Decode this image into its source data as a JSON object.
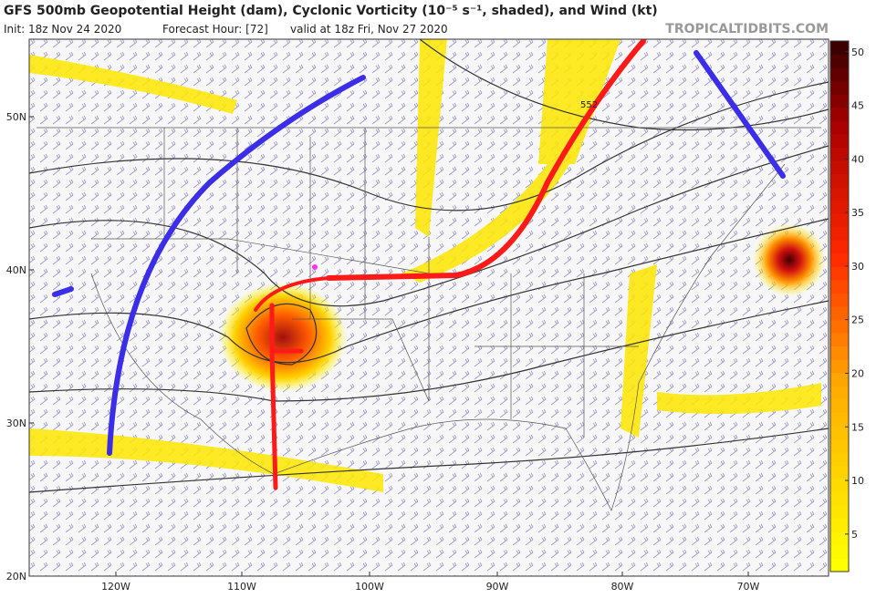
{
  "header": {
    "title": "GFS 500mb Geopotential Height (dam), Cyclonic Vorticity (10⁻⁵ s⁻¹, shaded), and Wind (kt)",
    "init": "Init: 18z Nov 24 2020",
    "forecast_hour": "Forecast Hour: [72]",
    "valid": "valid at 18z Fri, Nov 27 2020",
    "credit": "TROPICALTIDBITS.COM"
  },
  "map": {
    "lat_labels": [
      "50N",
      "40N",
      "30N",
      "20N"
    ],
    "lon_labels": [
      "120W",
      "110W",
      "100W",
      "90W",
      "80W",
      "70W"
    ],
    "contour_label": "552"
  },
  "colorbar": {
    "range": [
      1.5,
      51
    ],
    "ticks": [
      5,
      10,
      15,
      20,
      25,
      30,
      35,
      40,
      45,
      50
    ]
  }
}
